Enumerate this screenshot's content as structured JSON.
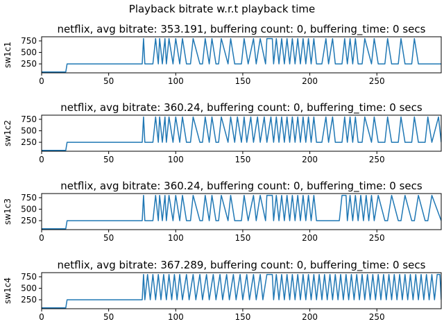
{
  "figure": {
    "suptitle": "Playback bitrate w.r.t playback time"
  },
  "chart_data": [
    {
      "type": "line",
      "title": "netflix, avg bitrate: 353.191, buffering count: 0, buffering_time: 0 secs",
      "ylabel": "sw1c1",
      "xlabel": "",
      "xlim": [
        0,
        298
      ],
      "ylim": [
        55,
        840
      ],
      "xticks": [
        0,
        50,
        100,
        150,
        200,
        250
      ],
      "yticks": [
        250,
        500,
        750
      ],
      "grid": false,
      "series": [
        {
          "color": "#1f77b4",
          "x": [
            0,
            18,
            19,
            75,
            76,
            77,
            83,
            85,
            87,
            88,
            90,
            92,
            93,
            95,
            98,
            100,
            103,
            105,
            108,
            111,
            113,
            118,
            120,
            122,
            125,
            127,
            130,
            132,
            134,
            139,
            141,
            144,
            149,
            151,
            154,
            158,
            160,
            163,
            167,
            168,
            171,
            172,
            173,
            175,
            177,
            179,
            181,
            183,
            185,
            187,
            189,
            191,
            193,
            195,
            197,
            199,
            201,
            203,
            205,
            209,
            212,
            214,
            217,
            219,
            224,
            226,
            228,
            230,
            232,
            234,
            236,
            239,
            241,
            246,
            248,
            251,
            256,
            258,
            261,
            266,
            268,
            271,
            276,
            278,
            281,
            298
          ],
          "y": [
            75,
            75,
            250,
            250,
            800,
            250,
            250,
            800,
            250,
            800,
            250,
            800,
            250,
            800,
            250,
            800,
            250,
            800,
            250,
            250,
            800,
            250,
            250,
            800,
            250,
            800,
            250,
            250,
            800,
            250,
            800,
            250,
            250,
            800,
            250,
            800,
            250,
            800,
            250,
            800,
            800,
            800,
            250,
            800,
            250,
            800,
            250,
            800,
            250,
            800,
            250,
            800,
            250,
            800,
            250,
            800,
            250,
            800,
            250,
            250,
            800,
            250,
            800,
            250,
            250,
            800,
            250,
            800,
            250,
            800,
            250,
            250,
            800,
            250,
            800,
            250,
            250,
            800,
            250,
            250,
            800,
            250,
            250,
            800,
            250,
            250
          ]
        }
      ]
    },
    {
      "type": "line",
      "title": "netflix, avg bitrate: 360.24, buffering count: 0, buffering_time: 0 secs",
      "ylabel": "sw1c2",
      "xlabel": "",
      "xlim": [
        0,
        298
      ],
      "ylim": [
        55,
        840
      ],
      "xticks": [
        0,
        50,
        100,
        150,
        200,
        250
      ],
      "yticks": [
        250,
        500,
        750
      ],
      "grid": false,
      "series": [
        {
          "color": "#1f77b4",
          "x": [
            0,
            18,
            19,
            75,
            76,
            77,
            83,
            85,
            87,
            88,
            90,
            92,
            93,
            95,
            98,
            100,
            103,
            105,
            108,
            111,
            113,
            118,
            120,
            122,
            125,
            127,
            130,
            132,
            134,
            139,
            141,
            144,
            146,
            149,
            151,
            153,
            156,
            158,
            161,
            163,
            166,
            168,
            171,
            173,
            175,
            177,
            179,
            181,
            183,
            185,
            187,
            189,
            191,
            193,
            195,
            197,
            199,
            201,
            203,
            205,
            209,
            212,
            214,
            217,
            219,
            224,
            226,
            228,
            230,
            232,
            234,
            236,
            239,
            241,
            246,
            248,
            251,
            256,
            258,
            261,
            266,
            268,
            271,
            276,
            278,
            281,
            286,
            288,
            291,
            296,
            298
          ],
          "y": [
            75,
            75,
            250,
            250,
            800,
            250,
            250,
            800,
            250,
            800,
            250,
            800,
            250,
            800,
            250,
            800,
            250,
            800,
            250,
            250,
            800,
            250,
            250,
            800,
            250,
            800,
            250,
            250,
            800,
            250,
            800,
            250,
            800,
            250,
            800,
            250,
            800,
            250,
            800,
            250,
            800,
            250,
            800,
            250,
            800,
            250,
            800,
            250,
            800,
            250,
            800,
            250,
            800,
            250,
            800,
            250,
            800,
            250,
            800,
            250,
            250,
            800,
            250,
            800,
            250,
            250,
            800,
            250,
            800,
            250,
            800,
            250,
            250,
            800,
            250,
            800,
            250,
            250,
            800,
            250,
            250,
            800,
            250,
            250,
            800,
            250,
            250,
            800,
            250,
            800,
            250
          ]
        }
      ]
    },
    {
      "type": "line",
      "title": "netflix, avg bitrate: 360.24, buffering count: 0, buffering_time: 0 secs",
      "ylabel": "sw1c3",
      "xlabel": "",
      "xlim": [
        0,
        298
      ],
      "ylim": [
        55,
        840
      ],
      "xticks": [
        0,
        50,
        100,
        150,
        200,
        250
      ],
      "yticks": [
        250,
        500,
        750
      ],
      "grid": false,
      "series": [
        {
          "color": "#1f77b4",
          "x": [
            0,
            18,
            19,
            75,
            76,
            77,
            83,
            85,
            87,
            88,
            90,
            92,
            93,
            95,
            98,
            100,
            103,
            105,
            108,
            111,
            113,
            118,
            120,
            122,
            125,
            127,
            130,
            132,
            134,
            139,
            141,
            144,
            149,
            151,
            154,
            158,
            160,
            163,
            167,
            168,
            171,
            172,
            173,
            175,
            177,
            179,
            181,
            183,
            185,
            187,
            189,
            191,
            193,
            195,
            197,
            199,
            201,
            203,
            205,
            222,
            224,
            227,
            228,
            230,
            232,
            234,
            236,
            238,
            240,
            242,
            244,
            246,
            248,
            251,
            256,
            258,
            261,
            266,
            268,
            271,
            276,
            278,
            281,
            286,
            288,
            291,
            298
          ],
          "y": [
            75,
            75,
            250,
            250,
            800,
            250,
            250,
            800,
            250,
            800,
            250,
            800,
            250,
            800,
            250,
            800,
            250,
            800,
            250,
            250,
            800,
            250,
            250,
            800,
            250,
            800,
            250,
            250,
            800,
            250,
            800,
            250,
            250,
            800,
            250,
            800,
            250,
            800,
            250,
            800,
            800,
            800,
            250,
            800,
            250,
            800,
            250,
            800,
            250,
            800,
            250,
            800,
            250,
            800,
            250,
            800,
            250,
            800,
            250,
            250,
            800,
            800,
            250,
            800,
            250,
            800,
            250,
            800,
            250,
            800,
            250,
            800,
            250,
            800,
            250,
            250,
            800,
            250,
            250,
            800,
            250,
            250,
            800,
            250,
            250,
            800,
            250
          ]
        }
      ]
    },
    {
      "type": "line",
      "title": "netflix, avg bitrate: 367.289, buffering count: 0, buffering_time: 0 secs",
      "ylabel": "sw1c4",
      "xlabel": "",
      "xlim": [
        0,
        298
      ],
      "ylim": [
        55,
        840
      ],
      "xticks": [
        0,
        50,
        100,
        150,
        200,
        250
      ],
      "yticks": [
        250,
        500,
        750
      ],
      "grid": false,
      "series": [
        {
          "color": "#1f77b4",
          "x": [
            0,
            18,
            19,
            75,
            76,
            77,
            79,
            81,
            83,
            85,
            87,
            89,
            91,
            93,
            95,
            97,
            99,
            101,
            103,
            105,
            108,
            110,
            113,
            115,
            118,
            120,
            123,
            125,
            128,
            130,
            133,
            135,
            138,
            140,
            143,
            145,
            148,
            150,
            153,
            155,
            158,
            160,
            163,
            165,
            168,
            169,
            171,
            172,
            173,
            175,
            177,
            179,
            181,
            183,
            185,
            187,
            189,
            191,
            193,
            195,
            197,
            199,
            201,
            203,
            205,
            207,
            209,
            211,
            213,
            215,
            217,
            219,
            221,
            223,
            225,
            227,
            229,
            231,
            233,
            235,
            237,
            239,
            241,
            243,
            245,
            247,
            249,
            251,
            253,
            255,
            257,
            259,
            261,
            263,
            265,
            267,
            269,
            271,
            273,
            275,
            277,
            279,
            281,
            283,
            285,
            287,
            289,
            291,
            293,
            295,
            297,
            298
          ],
          "y": [
            75,
            75,
            250,
            250,
            800,
            250,
            800,
            250,
            800,
            250,
            800,
            250,
            800,
            250,
            800,
            250,
            800,
            250,
            800,
            250,
            800,
            250,
            800,
            250,
            800,
            250,
            800,
            250,
            800,
            250,
            800,
            250,
            800,
            250,
            800,
            250,
            800,
            250,
            800,
            250,
            800,
            250,
            800,
            250,
            800,
            800,
            800,
            800,
            250,
            800,
            250,
            800,
            250,
            800,
            250,
            800,
            250,
            800,
            250,
            800,
            250,
            800,
            250,
            800,
            250,
            800,
            250,
            800,
            250,
            800,
            250,
            800,
            250,
            800,
            250,
            800,
            250,
            800,
            250,
            800,
            250,
            800,
            250,
            800,
            250,
            800,
            250,
            800,
            250,
            800,
            250,
            800,
            250,
            800,
            250,
            800,
            250,
            800,
            250,
            800,
            250,
            800,
            250,
            800,
            250,
            800,
            250,
            800,
            250,
            800,
            800,
            250
          ]
        }
      ]
    }
  ]
}
